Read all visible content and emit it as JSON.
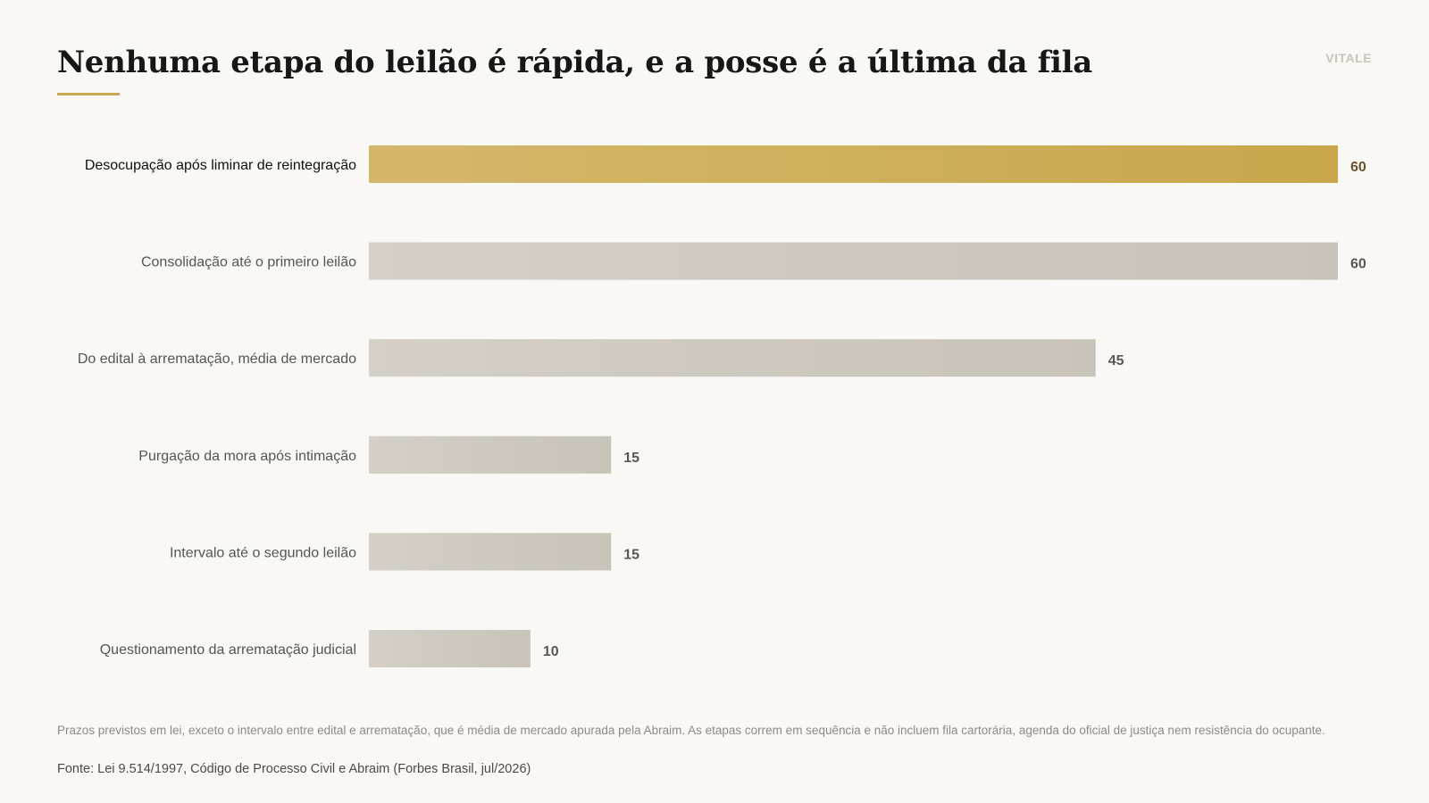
{
  "header": {
    "title": "Nenhuma etapa do leilão é rápida, e a posse é a última da fila",
    "brand": "VITALE"
  },
  "colors": {
    "highlight_start": "#d4b76a",
    "highlight_end": "#c9a74c",
    "bar_start": "#d4cfc7",
    "bar_end": "#c9c4b9",
    "highlight_value": "#6b5332",
    "normal_value": "#5a5752",
    "highlight_label": "#111111",
    "normal_label": "#555555",
    "accent": "#c8a951"
  },
  "chart_data": {
    "type": "bar",
    "orientation": "horizontal",
    "categories": [
      "Desocupação após liminar de reintegração",
      "Consolidação até o primeiro leilão",
      "Do edital à arrematação, média de mercado",
      "Purgação da mora após intimação",
      "Intervalo até o segundo leilão",
      "Questionamento da arrematação judicial"
    ],
    "values": [
      60,
      60,
      45,
      15,
      15,
      10
    ],
    "highlighted_index": 0,
    "xlim": [
      0,
      60
    ],
    "grid": false,
    "legend": "none"
  },
  "footer": {
    "note": "Prazos previstos em lei, exceto o intervalo entre edital e arrematação, que é média de mercado apurada pela Abraim. As etapas correm em sequência e não incluem fila cartorária, agenda do oficial de justiça nem resistência do ocupante.",
    "source": "Fonte: Lei 9.514/1997, Código de Processo Civil e Abraim (Forbes Brasil, jul/2026)"
  }
}
